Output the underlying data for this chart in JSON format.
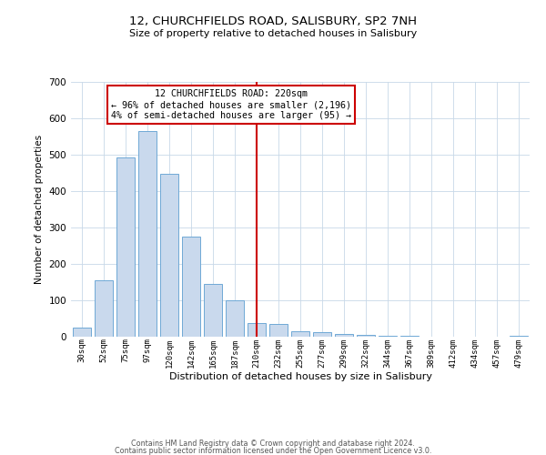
{
  "title": "12, CHURCHFIELDS ROAD, SALISBURY, SP2 7NH",
  "subtitle": "Size of property relative to detached houses in Salisbury",
  "xlabel": "Distribution of detached houses by size in Salisbury",
  "ylabel": "Number of detached properties",
  "bar_labels": [
    "30sqm",
    "52sqm",
    "75sqm",
    "97sqm",
    "120sqm",
    "142sqm",
    "165sqm",
    "187sqm",
    "210sqm",
    "232sqm",
    "255sqm",
    "277sqm",
    "299sqm",
    "322sqm",
    "344sqm",
    "367sqm",
    "389sqm",
    "412sqm",
    "434sqm",
    "457sqm",
    "479sqm"
  ],
  "bar_heights": [
    25,
    155,
    492,
    565,
    447,
    275,
    145,
    100,
    37,
    35,
    15,
    12,
    8,
    5,
    3,
    2,
    1,
    0,
    0,
    0,
    3
  ],
  "bar_color": "#c9d9ed",
  "bar_edge_color": "#6fa8d6",
  "vline_x": 8,
  "vline_color": "#cc0000",
  "annotation_title": "12 CHURCHFIELDS ROAD: 220sqm",
  "annotation_line1": "← 96% of detached houses are smaller (2,196)",
  "annotation_line2": "4% of semi-detached houses are larger (95) →",
  "annotation_box_color": "#ffffff",
  "annotation_border_color": "#cc0000",
  "ylim": [
    0,
    700
  ],
  "yticks": [
    0,
    100,
    200,
    300,
    400,
    500,
    600,
    700
  ],
  "footer_line1": "Contains HM Land Registry data © Crown copyright and database right 2024.",
  "footer_line2": "Contains public sector information licensed under the Open Government Licence v3.0.",
  "background_color": "#ffffff",
  "grid_color": "#c8d8e8"
}
